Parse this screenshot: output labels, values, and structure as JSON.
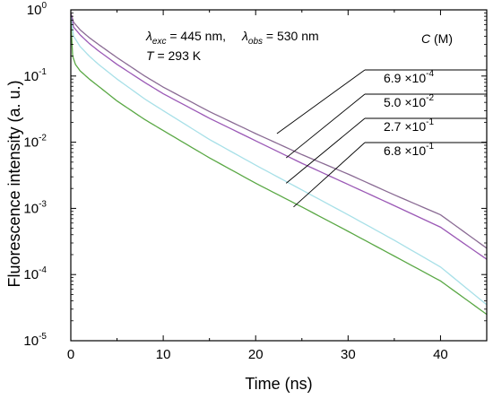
{
  "chart_data": {
    "type": "line",
    "title": "",
    "xlabel": "Time (ns)",
    "ylabel": "Fluorescence intensity (a. u.)",
    "xlim": [
      0,
      45
    ],
    "ylim": [
      1e-05,
      1
    ],
    "yscale": "log",
    "grid": false,
    "x_ticks": [
      "0",
      "10",
      "20",
      "30",
      "40"
    ],
    "y_tick_bases": [
      "10",
      "10",
      "10",
      "10",
      "10",
      "10"
    ],
    "y_tick_exponents": [
      "-5",
      "-4",
      "-3",
      "-2",
      "-1",
      "0"
    ],
    "annotation": {
      "lambda_exc": "λexc = 445 nm,",
      "lambda_obs": "λobs = 530 nm",
      "temperature": "T = 293 K"
    },
    "legend_title": "C (M)",
    "legend_position": "right",
    "series": [
      {
        "name": "6.9 ×10-4",
        "mantissa": "6.9 ×10",
        "exponent": "-4",
        "color": "#8a6b94",
        "x": [
          0,
          0.3,
          1,
          2,
          3,
          5,
          8,
          10,
          15,
          20,
          25,
          30,
          35,
          40,
          45
        ],
        "y": [
          0.9,
          0.65,
          0.5,
          0.38,
          0.3,
          0.19,
          0.1,
          0.068,
          0.029,
          0.0135,
          0.0065,
          0.0033,
          0.0016,
          0.0008,
          0.00025
        ]
      },
      {
        "name": "5.0 ×10-2",
        "mantissa": "5.0 ×10",
        "exponent": "-2",
        "color": "#9b59b6",
        "x": [
          0,
          0.3,
          1,
          2,
          3,
          5,
          8,
          10,
          15,
          20,
          25,
          30,
          35,
          40,
          45
        ],
        "y": [
          0.85,
          0.55,
          0.42,
          0.31,
          0.24,
          0.15,
          0.08,
          0.054,
          0.023,
          0.0105,
          0.0048,
          0.0023,
          0.0011,
          0.00052,
          0.00017
        ]
      },
      {
        "name": "2.7 ×10-1",
        "mantissa": "2.7 ×10",
        "exponent": "-1",
        "color": "#a8e0e8",
        "x": [
          0,
          0.3,
          1,
          2,
          3,
          5,
          8,
          10,
          15,
          20,
          25,
          30,
          35,
          40,
          45
        ],
        "y": [
          0.8,
          0.4,
          0.28,
          0.2,
          0.15,
          0.09,
          0.045,
          0.03,
          0.011,
          0.0045,
          0.0019,
          0.0008,
          0.00033,
          0.00013,
          3.5e-05
        ]
      },
      {
        "name": "6.8 ×10-1",
        "mantissa": "6.8 ×10",
        "exponent": "-1",
        "color": "#5aa845",
        "x": [
          0,
          0.2,
          0.5,
          1,
          2,
          3,
          5,
          8,
          10,
          15,
          20,
          25,
          30,
          35,
          40,
          45
        ],
        "y": [
          0.7,
          0.2,
          0.15,
          0.12,
          0.09,
          0.07,
          0.042,
          0.022,
          0.015,
          0.0058,
          0.0024,
          0.00105,
          0.00045,
          0.00019,
          8e-05,
          2.5e-05
        ]
      }
    ],
    "pointer_lines": [
      {
        "from_x": 22.3,
        "from_y": 0.0135
      },
      {
        "from_x": 23.3,
        "from_y": 0.0058
      },
      {
        "from_x": 23.3,
        "from_y": 0.0024
      },
      {
        "from_x": 24.1,
        "from_y": 0.00105
      }
    ]
  }
}
